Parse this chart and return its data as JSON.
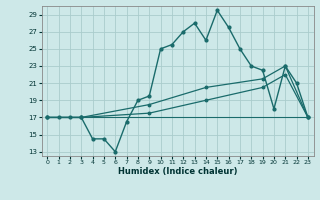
{
  "xlabel": "Humidex (Indice chaleur)",
  "xlim": [
    -0.5,
    23.5
  ],
  "ylim": [
    12.5,
    30.0
  ],
  "yticks": [
    13,
    15,
    17,
    19,
    21,
    23,
    25,
    27,
    29
  ],
  "xticks": [
    0,
    1,
    2,
    3,
    4,
    5,
    6,
    7,
    8,
    9,
    10,
    11,
    12,
    13,
    14,
    15,
    16,
    17,
    18,
    19,
    20,
    21,
    22,
    23
  ],
  "bg_color": "#cde8e8",
  "grid_color": "#aacccc",
  "line_color": "#1a6b6b",
  "line1_x": [
    0,
    1,
    2,
    3,
    4,
    5,
    6,
    7,
    8,
    9,
    10,
    11,
    12,
    13,
    14,
    15,
    16,
    17,
    18,
    19,
    20,
    21,
    22,
    23
  ],
  "line1_y": [
    17,
    17,
    17,
    17,
    14.5,
    14.5,
    13,
    16.5,
    19,
    19.5,
    25,
    25.5,
    27,
    28,
    26,
    29.5,
    27.5,
    25,
    23,
    22.5,
    18,
    23,
    21,
    17
  ],
  "line2_x": [
    0,
    3,
    9,
    14,
    19,
    21,
    23
  ],
  "line2_y": [
    17,
    17,
    18.5,
    20.5,
    21.5,
    23,
    17
  ],
  "line3_x": [
    0,
    3,
    9,
    14,
    19,
    21,
    23
  ],
  "line3_y": [
    17,
    17,
    17.5,
    19,
    20.5,
    22,
    17
  ],
  "line4_x": [
    0,
    23
  ],
  "line4_y": [
    17,
    17
  ]
}
